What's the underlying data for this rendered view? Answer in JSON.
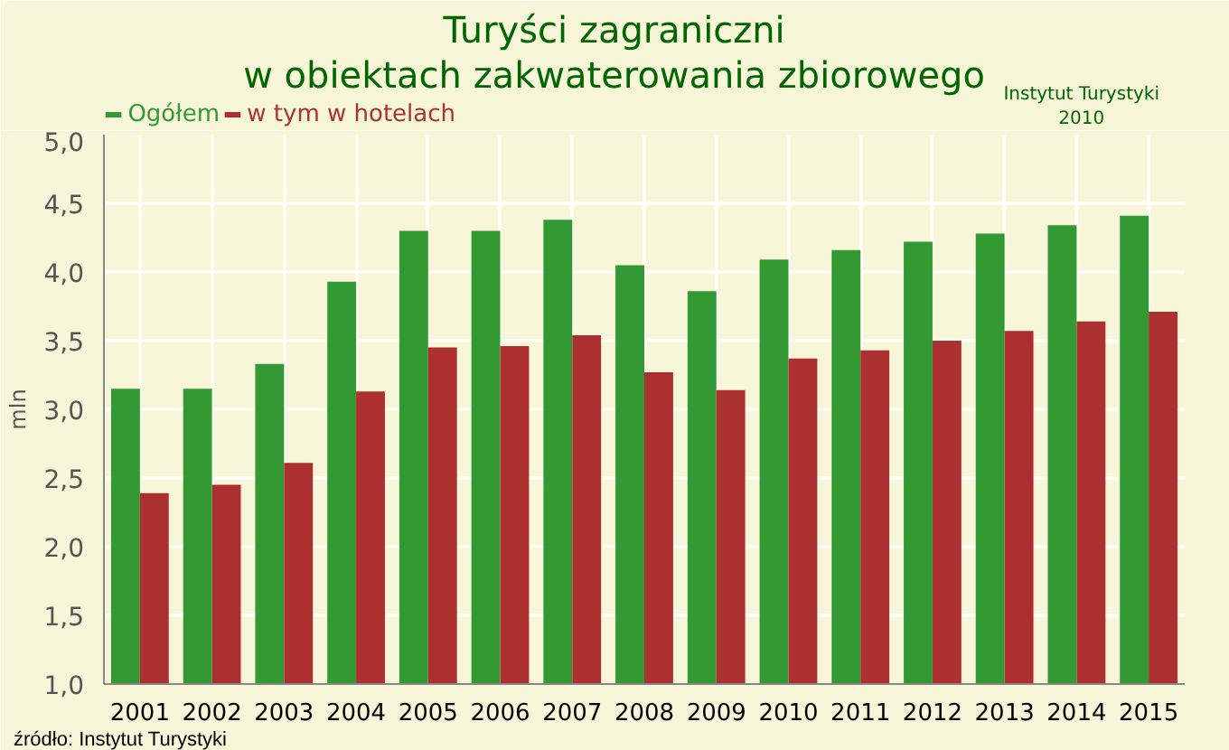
{
  "chart_data": {
    "type": "bar",
    "title": "Turyści zagraniczni\nw obiektach zakwaterowania zbiorowego",
    "ylabel": "mln",
    "categories": [
      "2001",
      "2002",
      "2003",
      "2004",
      "2005",
      "2006",
      "2007",
      "2008",
      "2009",
      "2010",
      "2011",
      "2012",
      "2013",
      "2014",
      "2015"
    ],
    "series": [
      {
        "name": "Ogółem",
        "color": "#339933",
        "values": [
          3.15,
          3.15,
          3.33,
          3.93,
          4.3,
          4.3,
          4.38,
          4.05,
          3.86,
          4.09,
          4.16,
          4.22,
          4.28,
          4.34,
          4.41
        ]
      },
      {
        "name": "w tym w hotelach",
        "color": "#ad3030",
        "values": [
          2.39,
          2.45,
          2.61,
          3.13,
          3.45,
          3.46,
          3.54,
          3.27,
          3.14,
          3.37,
          3.43,
          3.5,
          3.57,
          3.64,
          3.71
        ]
      }
    ],
    "ylim": [
      1.0,
      5.0
    ],
    "yticks": [
      {
        "value": 1.0,
        "label": "1,0"
      },
      {
        "value": 1.5,
        "label": "1,5"
      },
      {
        "value": 2.0,
        "label": "2,0"
      },
      {
        "value": 2.5,
        "label": "2,5"
      },
      {
        "value": 3.0,
        "label": "3,0"
      },
      {
        "value": 3.5,
        "label": "3,5"
      },
      {
        "value": 4.0,
        "label": "4,0"
      },
      {
        "value": 4.5,
        "label": "4,5"
      },
      {
        "value": 5.0,
        "label": "5,0"
      }
    ],
    "grid": true,
    "legend": "top left",
    "annotations": [
      "Instytut Turystyki\n2010",
      "źródło: Instytut Turystyki"
    ]
  }
}
